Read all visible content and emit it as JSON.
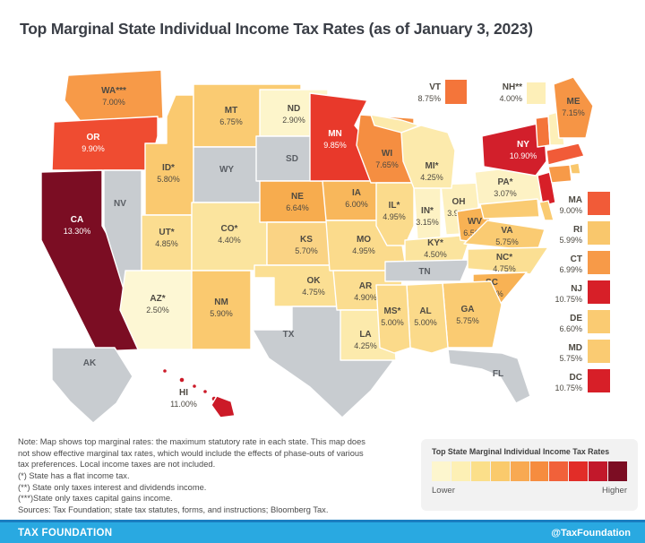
{
  "title": "Top Marginal State Individual Income Tax Rates (as of January 3, 2023)",
  "map": {
    "no_tax_color": "#C8CCD0",
    "border_color": "#FFFFFF",
    "states": [
      {
        "abbr": "WA",
        "label": "WA***",
        "rate": "7.00%",
        "value": 7.0,
        "color": "#F79A48",
        "text": "dark"
      },
      {
        "abbr": "OR",
        "label": "OR",
        "rate": "9.90%",
        "value": 9.9,
        "color": "#EF4C31",
        "text": "light"
      },
      {
        "abbr": "CA",
        "label": "CA",
        "rate": "13.30%",
        "value": 13.3,
        "color": "#7B0D23",
        "text": "light"
      },
      {
        "abbr": "NV",
        "label": "NV",
        "rate": null,
        "value": null,
        "color": "#C8CCD0",
        "text": "gray"
      },
      {
        "abbr": "ID",
        "label": "ID*",
        "rate": "5.80%",
        "value": 5.8,
        "color": "#FAC96F",
        "text": "dark"
      },
      {
        "abbr": "MT",
        "label": "MT",
        "rate": "6.75%",
        "value": 6.75,
        "color": "#FACB72",
        "text": "dark"
      },
      {
        "abbr": "WY",
        "label": "WY",
        "rate": null,
        "value": null,
        "color": "#C8CCD0",
        "text": "gray"
      },
      {
        "abbr": "UT",
        "label": "UT*",
        "rate": "4.85%",
        "value": 4.85,
        "color": "#FBDD90",
        "text": "dark"
      },
      {
        "abbr": "CO",
        "label": "CO*",
        "rate": "4.40%",
        "value": 4.4,
        "color": "#FBE49E",
        "text": "dark"
      },
      {
        "abbr": "AZ",
        "label": "AZ*",
        "rate": "2.50%",
        "value": 2.5,
        "color": "#FDF7D4",
        "text": "dark"
      },
      {
        "abbr": "NM",
        "label": "NM",
        "rate": "5.90%",
        "value": 5.9,
        "color": "#FAC96F",
        "text": "dark"
      },
      {
        "abbr": "ND",
        "label": "ND",
        "rate": "2.90%",
        "value": 2.9,
        "color": "#FDF5CB",
        "text": "dark"
      },
      {
        "abbr": "SD",
        "label": "SD",
        "rate": null,
        "value": null,
        "color": "#C8CCD0",
        "text": "gray"
      },
      {
        "abbr": "NE",
        "label": "NE",
        "rate": "6.64%",
        "value": 6.64,
        "color": "#F7AC4E",
        "text": "dark"
      },
      {
        "abbr": "KS",
        "label": "KS",
        "rate": "5.70%",
        "value": 5.7,
        "color": "#FAD384",
        "text": "dark"
      },
      {
        "abbr": "OK",
        "label": "OK",
        "rate": "4.75%",
        "value": 4.75,
        "color": "#FBDF93",
        "text": "dark"
      },
      {
        "abbr": "TX",
        "label": "TX",
        "rate": null,
        "value": null,
        "color": "#C8CCD0",
        "text": "gray"
      },
      {
        "abbr": "MN",
        "label": "MN",
        "rate": "9.85%",
        "value": 9.85,
        "color": "#E8392B",
        "text": "light"
      },
      {
        "abbr": "IA",
        "label": "IA",
        "rate": "6.00%",
        "value": 6.0,
        "color": "#F8B75B",
        "text": "dark"
      },
      {
        "abbr": "MO",
        "label": "MO",
        "rate": "4.95%",
        "value": 4.95,
        "color": "#FBDB8C",
        "text": "dark"
      },
      {
        "abbr": "AR",
        "label": "AR",
        "rate": "4.90%",
        "value": 4.9,
        "color": "#FBDD90",
        "text": "dark"
      },
      {
        "abbr": "LA",
        "label": "LA",
        "rate": "4.25%",
        "value": 4.25,
        "color": "#FCEAAC",
        "text": "dark"
      },
      {
        "abbr": "WI",
        "label": "WI",
        "rate": "7.65%",
        "value": 7.65,
        "color": "#F58E41",
        "text": "dark"
      },
      {
        "abbr": "IL",
        "label": "IL*",
        "rate": "4.95%",
        "value": 4.95,
        "color": "#FBDB8C",
        "text": "dark"
      },
      {
        "abbr": "IN",
        "label": "IN*",
        "rate": "3.15%",
        "value": 3.15,
        "color": "#FDF2C4",
        "text": "dark"
      },
      {
        "abbr": "OH",
        "label": "OH",
        "rate": "3.99%",
        "value": 3.99,
        "color": "#FDF0BD",
        "text": "dark"
      },
      {
        "abbr": "MI",
        "label": "MI*",
        "rate": "4.25%",
        "value": 4.25,
        "color": "#FCEAAC",
        "text": "dark"
      },
      {
        "abbr": "KY",
        "label": "KY*",
        "rate": "4.50%",
        "value": 4.5,
        "color": "#FBE49E",
        "text": "dark"
      },
      {
        "abbr": "TN",
        "label": "TN",
        "rate": null,
        "value": null,
        "color": "#C8CCD0",
        "text": "gray"
      },
      {
        "abbr": "WV",
        "label": "WV",
        "rate": "6.50%",
        "value": 6.5,
        "color": "#F8B254",
        "text": "dark"
      },
      {
        "abbr": "VA",
        "label": "VA",
        "rate": "5.75%",
        "value": 5.75,
        "color": "#FACB72",
        "text": "dark"
      },
      {
        "abbr": "NC",
        "label": "NC*",
        "rate": "4.75%",
        "value": 4.75,
        "color": "#FBDF93",
        "text": "dark"
      },
      {
        "abbr": "SC",
        "label": "SC",
        "rate": "6.50%",
        "value": 6.5,
        "color": "#F8B254",
        "text": "dark"
      },
      {
        "abbr": "GA",
        "label": "GA",
        "rate": "5.75%",
        "value": 5.75,
        "color": "#FACB72",
        "text": "dark"
      },
      {
        "abbr": "AL",
        "label": "AL",
        "rate": "5.00%",
        "value": 5.0,
        "color": "#FBDA8A",
        "text": "dark"
      },
      {
        "abbr": "MS",
        "label": "MS*",
        "rate": "5.00%",
        "value": 5.0,
        "color": "#FBDA8A",
        "text": "dark"
      },
      {
        "abbr": "FL",
        "label": "FL",
        "rate": null,
        "value": null,
        "color": "#C8CCD0",
        "text": "gray"
      },
      {
        "abbr": "PA",
        "label": "PA*",
        "rate": "3.07%",
        "value": 3.07,
        "color": "#FDF2C4",
        "text": "dark"
      },
      {
        "abbr": "NY",
        "label": "NY",
        "rate": "10.90%",
        "value": 10.9,
        "color": "#D21F2B",
        "text": "light"
      },
      {
        "abbr": "NJ",
        "label": null,
        "rate": "10.75%",
        "value": 10.75,
        "color": "#D71F28",
        "text": "light"
      },
      {
        "abbr": "MD",
        "label": null,
        "rate": "5.75%",
        "value": 5.75,
        "color": "#FACB72",
        "text": "dark"
      },
      {
        "abbr": "DE",
        "label": null,
        "rate": "6.60%",
        "value": 6.6,
        "color": "#FACB72",
        "text": "dark"
      },
      {
        "abbr": "VT",
        "label": null,
        "rate": "8.75%",
        "value": 8.75,
        "color": "#F4753A",
        "text": "dark"
      },
      {
        "abbr": "NH",
        "label": null,
        "rate": "4.00%",
        "value": 4.0,
        "color": "#FDEFB8",
        "text": "dark"
      },
      {
        "abbr": "ME",
        "label": "ME",
        "rate": "7.15%",
        "value": 7.15,
        "color": "#F69545",
        "text": "dark"
      },
      {
        "abbr": "MA",
        "label": null,
        "rate": "9.00%",
        "value": 9.0,
        "color": "#F15B38",
        "text": "light"
      },
      {
        "abbr": "RI",
        "label": null,
        "rate": "5.99%",
        "value": 5.99,
        "color": "#F9C76C",
        "text": "dark"
      },
      {
        "abbr": "CT",
        "label": null,
        "rate": "6.99%",
        "value": 6.99,
        "color": "#F79A48",
        "text": "dark"
      },
      {
        "abbr": "AK",
        "label": "AK",
        "rate": null,
        "value": null,
        "color": "#C8CCD0",
        "text": "gray"
      },
      {
        "abbr": "HI",
        "label": "HI",
        "rate": "11.00%",
        "value": 11.0,
        "color": "#CC1A28",
        "text": "dark"
      }
    ]
  },
  "callouts": {
    "top": [
      {
        "abbr": "VT",
        "label": "VT",
        "rate": "8.75%",
        "color": "#F4753A"
      },
      {
        "abbr": "NH",
        "label": "NH**",
        "rate": "4.00%",
        "color": "#FDEFB8"
      }
    ],
    "right": [
      {
        "abbr": "MA",
        "label": "MA",
        "rate": "9.00%",
        "color": "#F15B38"
      },
      {
        "abbr": "RI",
        "label": "RI",
        "rate": "5.99%",
        "color": "#F9C76C"
      },
      {
        "abbr": "CT",
        "label": "CT",
        "rate": "6.99%",
        "color": "#F79A48"
      },
      {
        "abbr": "NJ",
        "label": "NJ",
        "rate": "10.75%",
        "color": "#D71F28"
      },
      {
        "abbr": "DE",
        "label": "DE",
        "rate": "6.60%",
        "color": "#FACB72"
      },
      {
        "abbr": "MD",
        "label": "MD",
        "rate": "5.75%",
        "color": "#FACB72"
      },
      {
        "abbr": "DC",
        "label": "DC",
        "rate": "10.75%",
        "color": "#D71F28"
      }
    ]
  },
  "legend": {
    "title": "Top State Marginal Individual Income Tax Rates",
    "colors": [
      "#FDF6CE",
      "#FDF0B5",
      "#FBDF8A",
      "#FACA6C",
      "#F8A952",
      "#F68C3F",
      "#F1613A",
      "#E22D28",
      "#C2182B",
      "#7C0D23"
    ],
    "lower_label": "Lower",
    "higher_label": "Higher"
  },
  "notes": {
    "lines": [
      "Note: Map shows top marginal rates: the maximum statutory rate in each state. This map does",
      "not show effective marginal tax rates, which would include the effects of phase-outs of various",
      "tax preferences. Local income taxes are not included.",
      "(*) State has a flat income tax.",
      "(**) State only taxes interest and dividends income.",
      "(***)State only taxes capital gains income.",
      "Sources: Tax Foundation; state tax statutes, forms, and instructions; Bloomberg Tax."
    ]
  },
  "footer": {
    "brand": "TAX FOUNDATION",
    "handle": "@TaxFoundation",
    "bar_color": "#29A9E1",
    "bar_top_color": "#1A7DC0"
  },
  "chart_data": {
    "type": "choropleth",
    "title": "Top Marginal State Individual Income Tax Rates (as of January 3, 2023)",
    "unit": "%",
    "legend": {
      "lower": "Lower",
      "higher": "Higher"
    },
    "values": {
      "AL": 5.0,
      "AK": null,
      "AZ": 2.5,
      "AR": 4.9,
      "CA": 13.3,
      "CO": 4.4,
      "CT": 6.99,
      "DE": 6.6,
      "DC": 10.75,
      "FL": null,
      "GA": 5.75,
      "HI": 11.0,
      "ID": 5.8,
      "IL": 4.95,
      "IN": 3.15,
      "IA": 6.0,
      "KS": 5.7,
      "KY": 4.5,
      "LA": 4.25,
      "ME": 7.15,
      "MD": 5.75,
      "MA": 9.0,
      "MI": 4.25,
      "MN": 9.85,
      "MS": 5.0,
      "MO": 4.95,
      "MT": 6.75,
      "NE": 6.64,
      "NV": null,
      "NH": 4.0,
      "NJ": 10.75,
      "NM": 5.9,
      "NY": 10.9,
      "NC": 4.75,
      "ND": 2.9,
      "OH": 3.99,
      "OK": 4.75,
      "OR": 9.9,
      "PA": 3.07,
      "RI": 5.99,
      "SC": 6.5,
      "SD": null,
      "TN": null,
      "TX": null,
      "UT": 4.85,
      "VT": 8.75,
      "VA": 5.75,
      "WA": 7.0,
      "WV": 6.5,
      "WI": 7.65,
      "WY": null
    },
    "footnotes": {
      "*": "State has a flat income tax.",
      "**": "State only taxes interest and dividends income.",
      "***": "State only taxes capital gains income."
    }
  }
}
